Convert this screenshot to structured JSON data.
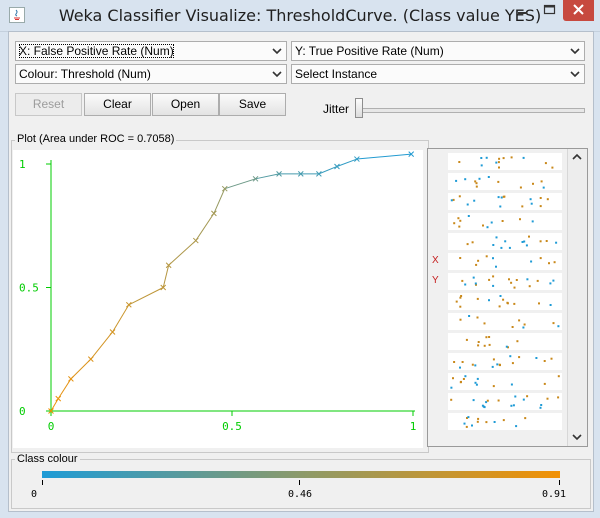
{
  "window": {
    "title": "Weka Classifier Visualize: ThresholdCurve. (Class value YES)"
  },
  "controls": {
    "x_axis": "X: False Positive Rate (Num)",
    "y_axis": "Y: True Positive Rate (Num)",
    "colour": "Colour: Threshold (Num)",
    "select_instance": "Select Instance",
    "reset": "Reset",
    "clear": "Clear",
    "open": "Open",
    "save": "Save",
    "jitter": "Jitter",
    "jitter_value": 0
  },
  "plot": {
    "title": "Plot (Area under ROC = 0.7058)"
  },
  "axis_panel": {
    "x_marker": "X",
    "y_marker": "Y"
  },
  "class_colour": {
    "title": "Class colour",
    "min": "0",
    "mid": "0.46",
    "max": "0.91",
    "low_color": "#1e9bd6",
    "high_color": "#f29104"
  },
  "chart_data": {
    "type": "line",
    "title": "Plot (Area under ROC = 0.7058)",
    "xlabel": "False Positive Rate",
    "ylabel": "True Positive Rate",
    "xlim": [
      0,
      1
    ],
    "ylim": [
      0,
      1
    ],
    "x_ticks": [
      "0",
      "0.5",
      "1"
    ],
    "y_ticks": [
      "0",
      "0.5",
      "1"
    ],
    "axis_color": "#00cc00",
    "marker": "x",
    "colour_by": "Threshold",
    "points": [
      {
        "x": 0.0,
        "y": 0.0,
        "threshold": 0.91
      },
      {
        "x": 0.02,
        "y": 0.05,
        "threshold": 0.88
      },
      {
        "x": 0.055,
        "y": 0.13,
        "threshold": 0.85
      },
      {
        "x": 0.11,
        "y": 0.21,
        "threshold": 0.81
      },
      {
        "x": 0.17,
        "y": 0.32,
        "threshold": 0.77
      },
      {
        "x": 0.215,
        "y": 0.43,
        "threshold": 0.73
      },
      {
        "x": 0.31,
        "y": 0.5,
        "threshold": 0.68
      },
      {
        "x": 0.325,
        "y": 0.59,
        "threshold": 0.64
      },
      {
        "x": 0.4,
        "y": 0.69,
        "threshold": 0.6
      },
      {
        "x": 0.45,
        "y": 0.8,
        "threshold": 0.56
      },
      {
        "x": 0.48,
        "y": 0.9,
        "threshold": 0.5
      },
      {
        "x": 0.565,
        "y": 0.94,
        "threshold": 0.33
      },
      {
        "x": 0.63,
        "y": 0.96,
        "threshold": 0.22
      },
      {
        "x": 0.69,
        "y": 0.96,
        "threshold": 0.17
      },
      {
        "x": 0.74,
        "y": 0.96,
        "threshold": 0.14
      },
      {
        "x": 0.79,
        "y": 0.99,
        "threshold": 0.1
      },
      {
        "x": 0.845,
        "y": 1.02,
        "threshold": 0.07
      },
      {
        "x": 0.995,
        "y": 1.04,
        "threshold": 0.02
      }
    ]
  }
}
